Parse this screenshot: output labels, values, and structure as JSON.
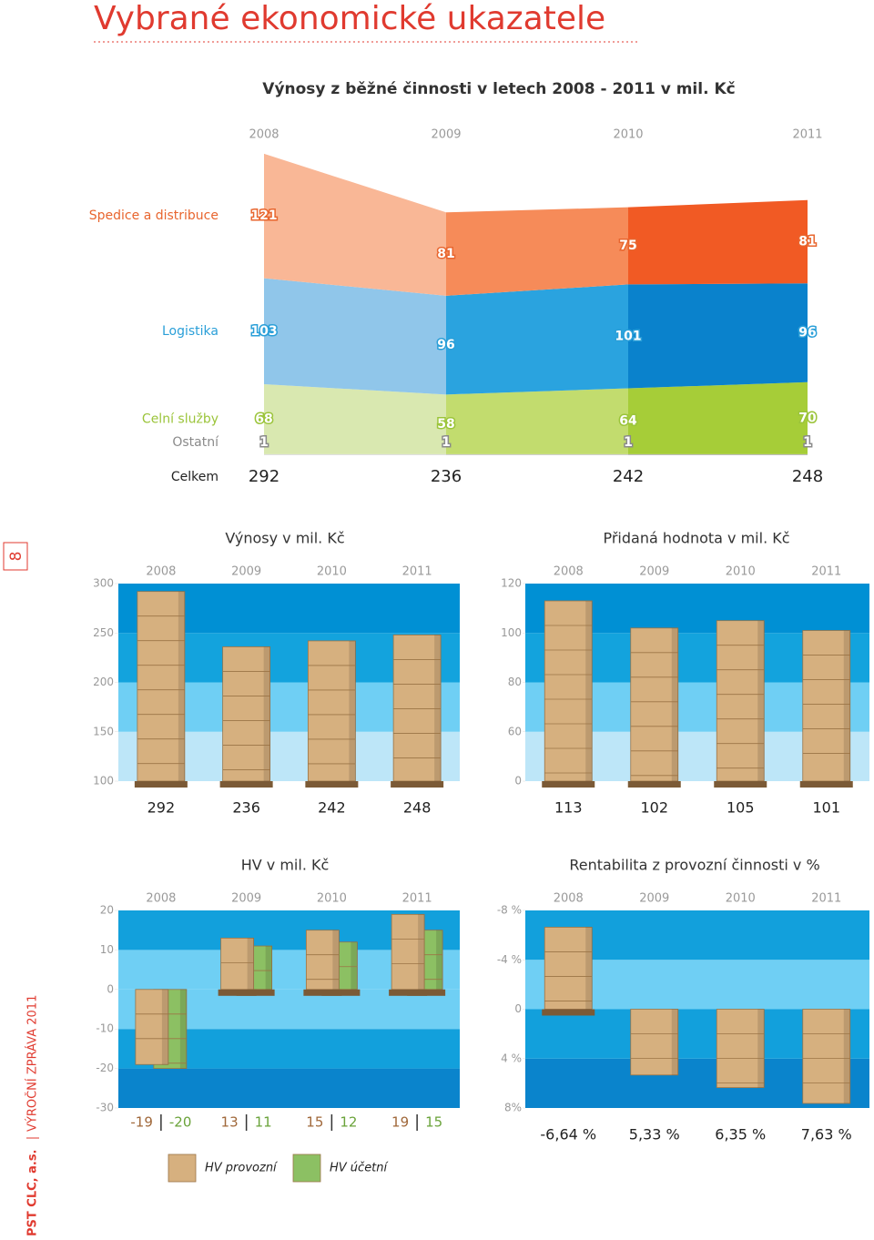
{
  "page_title": "Vybrané ekonomické ukazatele",
  "page_number": 8,
  "sidebar": {
    "company": "PST CLC, a.s.",
    "report": "VÝROČNÍ ZPRÁVA 2011"
  },
  "chart_data": [
    {
      "type": "stacked-area",
      "title": "Výnosy z běžné činnosti v letech 2008 - 2011 v mil. Kč",
      "categories": [
        "2008",
        "2009",
        "2010",
        "2011"
      ],
      "series": [
        {
          "name": "Spedice a distribuce",
          "color": "#e8652e",
          "colors": [
            "#f9b796",
            "#f68b59",
            "#f15a24"
          ],
          "values": [
            121,
            81,
            75,
            81
          ]
        },
        {
          "name": "Logistika",
          "color": "#2a9fd8",
          "colors": [
            "#90c6ea",
            "#2aa3df",
            "#0a82cc"
          ],
          "values": [
            103,
            96,
            101,
            96
          ]
        },
        {
          "name": "Celní služby",
          "color": "#9bc43a",
          "colors": [
            "#d9e8b0",
            "#c2dc6e",
            "#a6cd38"
          ],
          "values": [
            68,
            58,
            64,
            70
          ]
        },
        {
          "name": "Ostatní",
          "color": "#8a8a8a",
          "colors": [
            "#e0e0e0",
            "#cfcfcf",
            "#bdbdbd"
          ],
          "values": [
            1,
            1,
            1,
            1
          ]
        }
      ],
      "total_label": "Celkem",
      "totals": [
        292,
        236,
        242,
        248
      ]
    },
    {
      "type": "bar",
      "title": "Výnosy v mil. Kč",
      "categories": [
        "2008",
        "2009",
        "2010",
        "2011"
      ],
      "series": [
        {
          "color": "#d6b07f",
          "values": [
            292,
            236,
            242,
            248
          ]
        }
      ],
      "ylim": [
        100,
        300
      ],
      "yticks": [
        100,
        150,
        200,
        250,
        300
      ],
      "band_colors": [
        "#bde6f8",
        "#6fcff4",
        "#13a3dd",
        "#0090d4"
      ]
    },
    {
      "type": "bar",
      "title": "Přidaná hodnota v mil. Kč",
      "categories": [
        "2008",
        "2009",
        "2010",
        "2011"
      ],
      "series": [
        {
          "color": "#d6b07f",
          "values": [
            113,
            102,
            105,
            101
          ]
        }
      ],
      "ylim": [
        0,
        120
      ],
      "yticks": [
        0,
        60,
        80,
        100,
        120
      ],
      "band_colors": [
        "#bde6f8",
        "#6fcff4",
        "#13a3dd",
        "#0090d4"
      ]
    },
    {
      "type": "bar",
      "title": "HV v mil. Kč",
      "categories": [
        "2008",
        "2009",
        "2010",
        "2011"
      ],
      "series": [
        {
          "name": "HV provozní",
          "color": "#d6b07f",
          "values": [
            -19,
            13,
            15,
            19
          ]
        },
        {
          "name": "HV účetní",
          "color": "#8cc063",
          "values": [
            -20,
            11,
            12,
            15
          ]
        }
      ],
      "ylim": [
        -30,
        20
      ],
      "yticks": [
        -30,
        -20,
        -10,
        0,
        10,
        20
      ],
      "band_colors": [
        "#0a84cc",
        "#12a0dc",
        "#6fcff4",
        "#6fcff4",
        "#12a0dc"
      ]
    },
    {
      "type": "bar",
      "title": "Rentabilita z provozní činnosti v %",
      "categories": [
        "2008",
        "2009",
        "2010",
        "2011"
      ],
      "series": [
        {
          "color": "#d6b07f",
          "values": [
            -6.64,
            5.33,
            6.35,
            7.63
          ],
          "value_labels": [
            "-6,64 %",
            "5,33 %",
            "6,35 %",
            "7,63 %"
          ]
        }
      ],
      "ylim": [
        8,
        -8
      ],
      "yticks": [
        {
          "value": 8,
          "label": "8%"
        },
        {
          "value": 4,
          "label": "4 %"
        },
        0,
        {
          "value": -4,
          "label": "-4 %"
        },
        {
          "value": -8,
          "label": "-8 %"
        }
      ],
      "band_colors": [
        "#0a84cc",
        "#12a0dc",
        "#6fcff4",
        "#12a0dc"
      ]
    }
  ]
}
